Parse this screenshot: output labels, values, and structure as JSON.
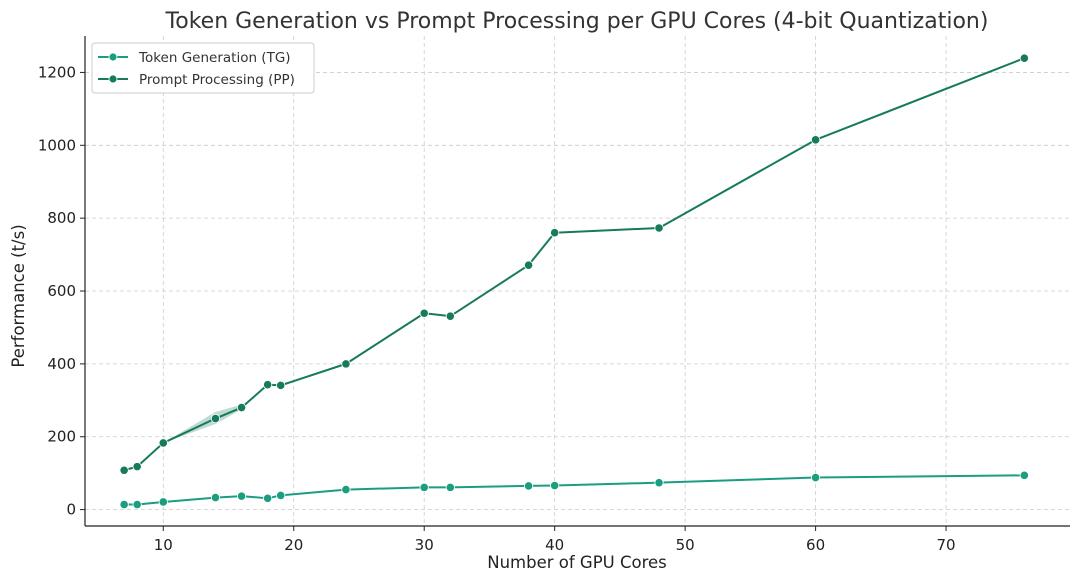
{
  "chart_data": {
    "type": "line",
    "title": "Token Generation vs Prompt Processing per GPU Cores (4-bit Quantization)",
    "xlabel": "Number of GPU Cores",
    "ylabel": "Performance (t/s)",
    "xlim": [
      4,
      79.5
    ],
    "ylim": [
      -45,
      1300
    ],
    "xticks": [
      10,
      20,
      30,
      40,
      50,
      60,
      70
    ],
    "yticks": [
      0,
      200,
      400,
      600,
      800,
      1000,
      1200
    ],
    "grid": true,
    "legend_position": "top-left",
    "series": [
      {
        "name": "Token Generation (TG)",
        "color": "#1a9e7f",
        "x": [
          7,
          8,
          10,
          14,
          16,
          18,
          19,
          24,
          30,
          32,
          38,
          40,
          48,
          60,
          76
        ],
        "y": [
          14,
          14,
          21,
          33,
          37,
          31,
          39,
          55,
          61,
          61,
          65,
          66,
          74,
          88,
          94
        ]
      },
      {
        "name": "Prompt Processing (PP)",
        "color": "#167a5c",
        "x": [
          7,
          8,
          10,
          14,
          16,
          18,
          19,
          24,
          30,
          32,
          38,
          40,
          48,
          60,
          76
        ],
        "y": [
          108,
          118,
          183,
          250,
          280,
          343,
          341,
          400,
          539,
          531,
          671,
          760,
          773,
          1015,
          1239
        ],
        "band": {
          "x": [
            10,
            14,
            16
          ],
          "lower": [
            183,
            235,
            275
          ],
          "upper": [
            183,
            268,
            288
          ]
        }
      }
    ]
  }
}
